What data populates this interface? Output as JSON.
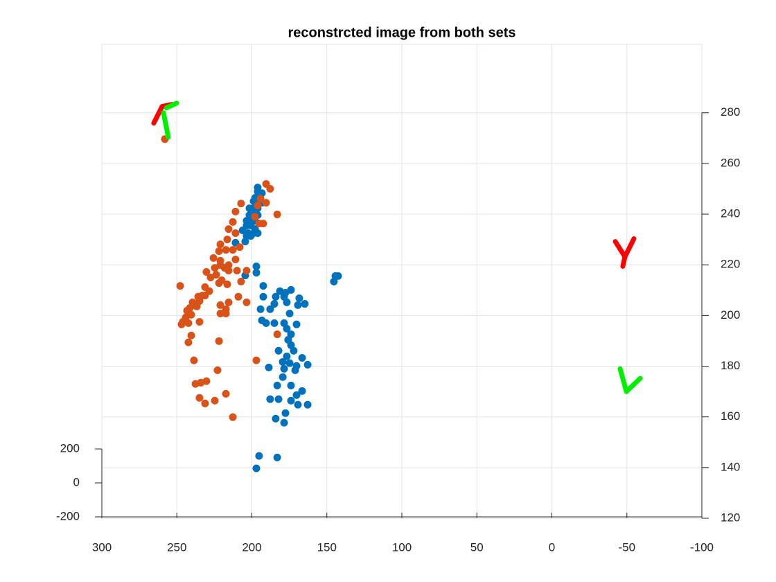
{
  "chart_data": {
    "type": "scatter",
    "title": "reconstrcted image from both sets",
    "xlim": [
      300,
      -100
    ],
    "xticks": [
      300,
      250,
      200,
      150,
      100,
      50,
      0,
      -50,
      -100
    ],
    "ylim": [
      120,
      307
    ],
    "yticks": [
      120,
      140,
      160,
      180,
      200,
      220,
      240,
      260,
      280
    ],
    "zlim": [
      -200,
      200
    ],
    "zticks": [
      -200,
      0,
      200
    ],
    "grid": true,
    "series": [
      {
        "color": "#0072bd",
        "x": [
          196.1,
          196.1,
          193.3,
          197.9,
          194.7,
          198.8,
          196.1,
          193.3,
          201.6,
          198.8,
          196.1,
          201.6,
          198.8,
          196.1,
          203.5,
          200.7,
          197.9,
          203.5,
          200.7,
          197.9,
          206.2,
          202.5,
          198.8,
          196.1,
          203.5,
          200.7,
          204.4,
          210.9,
          197,
          197,
          204.4,
          192.4,
          181.3,
          177.6,
          173.9,
          192.4,
          184.1,
          178.5,
          185,
          176.7,
          168.4,
          164.7,
          169.3,
          194.2,
          187.8,
          174.8,
          193.3,
          190.5,
          185,
          178.5,
          170.2,
          176.7,
          173.9,
          175.8,
          173.9,
          182.2,
          172.1,
          176.7,
          166.5,
          179.4,
          174.8,
          170.2,
          162.8,
          178.5,
          171.1,
          188.7,
          179.4,
          183.1,
          173.9,
          166.5,
          170.2,
          187.8,
          182.2,
          173.9,
          169.3,
          162.8,
          177.6,
          184.1,
          178.5,
          195.2,
          183.1,
          197,
          144.3,
          142.5,
          145.3
        ],
        "y": [
          250.5,
          248.9,
          248.3,
          246.4,
          246.4,
          245.1,
          244.5,
          244.5,
          242.3,
          242.3,
          242.3,
          239.6,
          239.6,
          239.6,
          237.4,
          237.4,
          237.4,
          235.5,
          235.5,
          234.1,
          233.6,
          232.5,
          232.5,
          232.5,
          231.4,
          231.4,
          229.2,
          228.7,
          219.4,
          216.9,
          215.8,
          211.7,
          209.6,
          209,
          210.1,
          207.4,
          207.4,
          207.4,
          204.6,
          205.2,
          206.8,
          204.6,
          204.1,
          202.5,
          202.5,
          200.8,
          198.1,
          197,
          197,
          197,
          196.5,
          194.8,
          192.6,
          190.4,
          188.3,
          186.1,
          186.1,
          183.9,
          183.3,
          181.7,
          181.2,
          180.1,
          180.6,
          179,
          178.4,
          179.5,
          175.7,
          172.4,
          172.4,
          170.2,
          168.6,
          167,
          167,
          166.4,
          164.8,
          164.8,
          161.5,
          159.3,
          157.7,
          144.6,
          144,
          139.7,
          215.6,
          215.6,
          213.4
        ]
      },
      {
        "color": "#d95319",
        "x": [
          258,
          190.5,
          187.8,
          194.2,
          190.5,
          196.1,
          207.2,
          210.9,
          183.1,
          197.9,
          192.4,
          195.2,
          212.7,
          215.5,
          210.9,
          216.4,
          221,
          208.1,
          212.7,
          217.3,
          221.9,
          225.6,
          221,
          210.9,
          215.5,
          221,
          224.7,
          218.2,
          209.9,
          203.5,
          230.3,
          215.5,
          223.8,
          227.5,
          220.1,
          247.8,
          231.2,
          221.9,
          216.4,
          207.2,
          228.4,
          233,
          235.8,
          231.2,
          234.9,
          239.5,
          236.7,
          241.3,
          243.2,
          240.4,
          244.1,
          246,
          242.3,
          234.9,
          246.9,
          221,
          215.5,
          217.3,
          203.5,
          209,
          221,
          217.3,
          240.4,
          242.3,
          221.9,
          183.1,
          238.6,
          197,
          222.9,
          237.6,
          234,
          230.3,
          234.9,
          231.2,
          224.7,
          217.3,
          212.7
        ],
        "y": [
          269.6,
          251.9,
          250,
          246.1,
          244.5,
          243.4,
          244.2,
          241,
          239.9,
          239,
          236.3,
          236.3,
          236.9,
          234.1,
          232.5,
          230,
          228.1,
          227,
          225.9,
          225.9,
          225.4,
          222.7,
          221.6,
          222.1,
          219.9,
          219.9,
          218.8,
          218.8,
          217.7,
          217.7,
          217.2,
          217.7,
          216.1,
          215,
          213.9,
          211.7,
          211.2,
          212.8,
          212.3,
          213.4,
          209.6,
          207.9,
          207.4,
          207.9,
          205.7,
          205.2,
          203.6,
          203,
          201.9,
          200.3,
          199.2,
          197.5,
          197,
          197.5,
          196.5,
          204.1,
          205.2,
          202.5,
          205.2,
          207.4,
          200.8,
          200.8,
          192.1,
          189.4,
          189.9,
          192.6,
          182.3,
          182.3,
          178.4,
          173,
          173.5,
          174.1,
          167.5,
          165.3,
          166.4,
          169.1,
          159.9
        ]
      }
    ],
    "segments": [
      {
        "color": "#ff0000",
        "x": [
          265.4,
          259.8
        ],
        "y": [
          275.9,
          282.5
        ]
      },
      {
        "color": "#ff0000",
        "x": [
          259.8,
          253.3
        ],
        "y": [
          282.5,
          283.3
        ]
      },
      {
        "color": "#00ee00",
        "x": [
          258.9,
          255.7
        ],
        "y": [
          280,
          270.4
        ]
      },
      {
        "color": "#00ee00",
        "x": [
          257,
          250.1
        ],
        "y": [
          281.9,
          283.8
        ]
      },
      {
        "color": "#ff0000",
        "x": [
          -42.3,
          -48.7
        ],
        "y": [
          229.2,
          223.2
        ]
      },
      {
        "color": "#ff0000",
        "x": [
          -54.7,
          -48.7
        ],
        "y": [
          230.3,
          223.2
        ]
      },
      {
        "color": "#ff0000",
        "x": [
          -48.7,
          -47.3
        ],
        "y": [
          223.2,
          219.4
        ]
      },
      {
        "color": "#00ee00",
        "x": [
          -45.5,
          -49.7
        ],
        "y": [
          179,
          170
        ]
      },
      {
        "color": "#00ee00",
        "x": [
          -49.7,
          -58.9
        ],
        "y": [
          170,
          175.2
        ]
      }
    ]
  }
}
